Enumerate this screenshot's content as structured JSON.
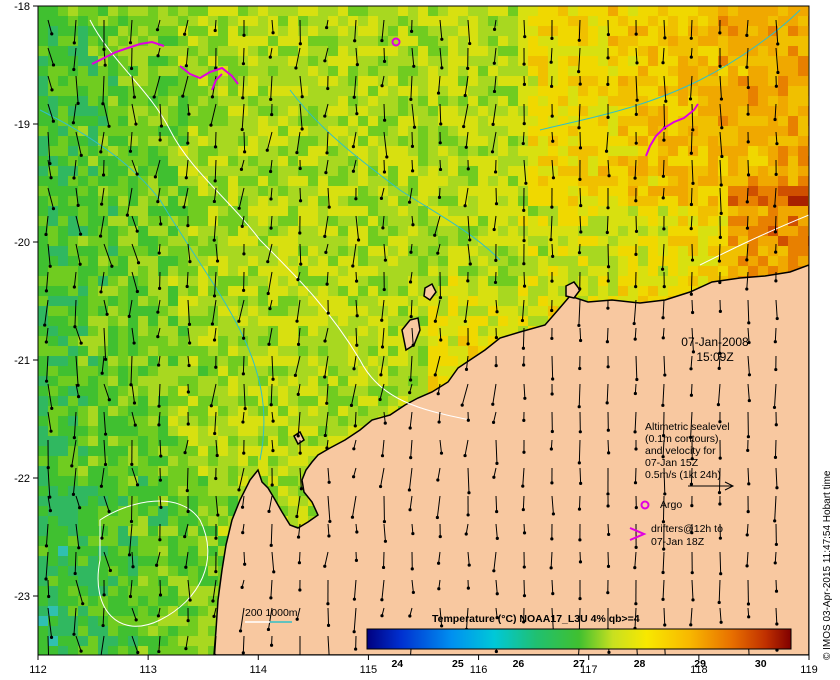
{
  "map": {
    "lon_ticks": [
      "112",
      "113",
      "114",
      "115",
      "116",
      "117",
      "118",
      "119"
    ],
    "lat_ticks": [
      "-18",
      "-19",
      "-20",
      "-21",
      "-22",
      "-23"
    ],
    "date_line": "07-Jan-2008",
    "time_line": "15:09Z",
    "side_credit": "© IMOS 03-Apr-2015 11:47:54 Hobart time"
  },
  "legend": {
    "altimetric_lines": [
      "Altimetric sealevel",
      "(0.1m contours)",
      "and velocity for",
      "07-Jan 15Z",
      "0.5m/s (1kt 24h)"
    ],
    "argo_label": "Argo",
    "drifters_lines": [
      "drifters@12h to",
      "07-Jan 18Z"
    ],
    "depth_label": "200  1000m",
    "colorbar_title": "Temperature (°C) NOAA17_L3U 4% qb>=4",
    "colorbar_ticks": [
      "24",
      "25",
      "26",
      "27",
      "28",
      "29",
      "30"
    ]
  },
  "colors": {
    "land": "#f8c8a0",
    "argo": "#e000e0",
    "drifter": "#e000e0",
    "bathy_200": "#ffffff",
    "bathy_1000": "#30c0c8"
  }
}
